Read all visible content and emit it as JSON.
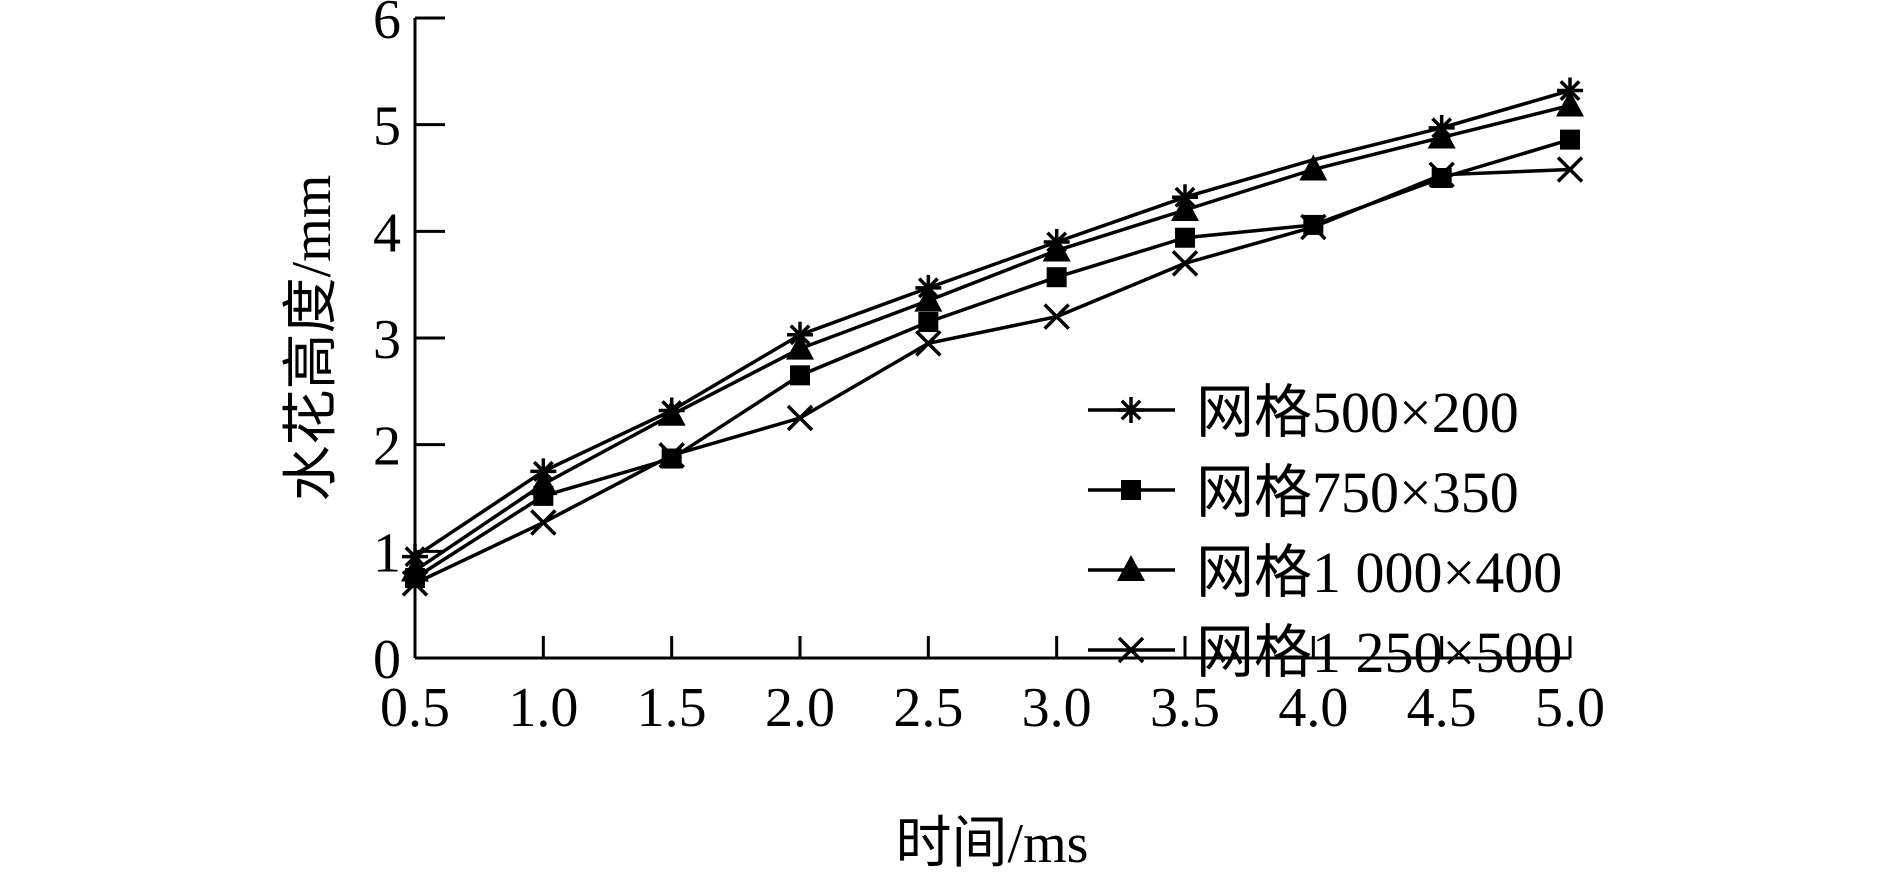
{
  "chart_data": {
    "type": "line",
    "title": "",
    "xlabel": "时间/ms",
    "ylabel": "水花高度/mm",
    "xlim": [
      0.5,
      5.0
    ],
    "ylim": [
      0,
      6
    ],
    "x": [
      0.5,
      1.0,
      1.5,
      2.0,
      2.5,
      3.0,
      3.5,
      4.0,
      4.5,
      5.0
    ],
    "x_tick_labels": [
      "0.5",
      "1.0",
      "1.5",
      "2.0",
      "2.5",
      "3.0",
      "3.5",
      "4.0",
      "4.5",
      "5.0"
    ],
    "y_ticks": [
      0,
      1,
      2,
      3,
      4,
      5,
      6
    ],
    "y_tick_labels": [
      "0",
      "1",
      "2",
      "3",
      "4",
      "5",
      "6"
    ],
    "grid": false,
    "legend_position": "lower-right",
    "color": "#000000",
    "series": [
      {
        "name": "网格500×200",
        "marker": "asterisk",
        "values": [
          0.95,
          1.75,
          2.32,
          3.03,
          3.47,
          3.9,
          4.32,
          4.67,
          4.97,
          5.32
        ]
      },
      {
        "name": "网格750×350",
        "marker": "square",
        "values": [
          0.75,
          1.52,
          1.87,
          2.65,
          3.15,
          3.57,
          3.94,
          4.06,
          4.5,
          4.86
        ]
      },
      {
        "name": "网格1 000×400",
        "marker": "triangle",
        "values": [
          0.82,
          1.63,
          2.28,
          2.9,
          3.35,
          3.82,
          4.2,
          4.58,
          4.88,
          5.18
        ]
      },
      {
        "name": "网格1 250×500",
        "marker": "x",
        "values": [
          0.7,
          1.27,
          1.9,
          2.25,
          2.95,
          3.2,
          3.7,
          4.04,
          4.53,
          4.58
        ]
      }
    ]
  }
}
